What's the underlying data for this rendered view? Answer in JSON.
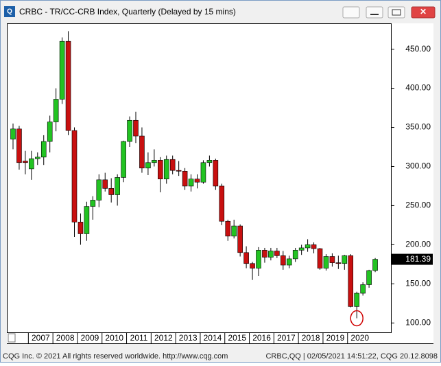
{
  "chart_data": {
    "type": "candlestick",
    "title": "CRBC - TR/CC-CRB Index, Quarterly (Delayed by 15 mins)",
    "open": [
      335,
      348,
      307,
      297,
      310,
      312,
      332,
      357,
      386,
      460,
      346,
      229,
      214,
      249,
      257,
      283,
      272,
      264,
      286,
      332,
      359,
      339,
      298,
      305,
      308,
      284,
      309,
      295,
      294,
      275,
      284,
      280,
      305,
      308,
      275,
      230,
      211,
      224,
      190,
      176,
      170,
      193,
      184,
      192,
      186,
      174,
      182,
      193,
      196,
      200,
      195,
      170,
      185,
      177,
      176,
      186,
      121,
      138,
      149,
      167
    ],
    "high": [
      355,
      352,
      320,
      320,
      318,
      340,
      365,
      400,
      465,
      473,
      350,
      240,
      255,
      262,
      290,
      292,
      285,
      290,
      333,
      364,
      370,
      350,
      318,
      322,
      312,
      314,
      314,
      307,
      298,
      290,
      290,
      308,
      314,
      310,
      278,
      232,
      232,
      226,
      198,
      178,
      197,
      196,
      196,
      196,
      192,
      186,
      196,
      200,
      207,
      203,
      196,
      188,
      189,
      186,
      187,
      188,
      140,
      152,
      168,
      183
    ],
    "low": [
      322,
      296,
      290,
      283,
      302,
      302,
      318,
      345,
      380,
      340,
      210,
      200,
      205,
      232,
      248,
      268,
      254,
      250,
      280,
      325,
      330,
      292,
      289,
      300,
      267,
      278,
      290,
      288,
      270,
      268,
      272,
      278,
      300,
      270,
      225,
      205,
      208,
      185,
      170,
      155,
      160,
      177,
      180,
      183,
      168,
      170,
      178,
      187,
      191,
      189,
      168,
      167,
      172,
      169,
      168,
      120,
      106,
      135,
      145,
      165
    ],
    "close": [
      348,
      305,
      305,
      310,
      312,
      332,
      357,
      386,
      460,
      346,
      229,
      214,
      249,
      257,
      283,
      272,
      264,
      286,
      332,
      359,
      339,
      298,
      305,
      308,
      284,
      309,
      295,
      294,
      275,
      284,
      280,
      305,
      308,
      275,
      230,
      211,
      224,
      190,
      176,
      170,
      193,
      184,
      192,
      186,
      174,
      182,
      193,
      196,
      200,
      195,
      170,
      185,
      177,
      176,
      186,
      121,
      138,
      149,
      167,
      181.39
    ],
    "x_labels": [
      "2007",
      "2008",
      "2009",
      "2010",
      "2011",
      "2012",
      "2013",
      "2014",
      "2015",
      "2016",
      "2017",
      "2018",
      "2019",
      "2020"
    ],
    "ylim": [
      88,
      483
    ],
    "yticks": [
      {
        "value": 100,
        "label": "100.00"
      },
      {
        "value": 150,
        "label": "150.00"
      },
      {
        "value": 200,
        "label": "200.00"
      },
      {
        "value": 250,
        "label": "250.00"
      },
      {
        "value": 300,
        "label": "300.00"
      },
      {
        "value": 350,
        "label": "350.00"
      },
      {
        "value": 400,
        "label": "400.00"
      },
      {
        "value": 450,
        "label": "450.00"
      }
    ],
    "up_color": "#22c322",
    "down_color": "#c81010",
    "footer_left": "CQG Inc. © 2021 All rights reserved worldwide. http://www.cqg.com",
    "footer_right": "CRBC,QQ | 02/05/2021 14:51:22, CQG 20.12.8098"
  }
}
